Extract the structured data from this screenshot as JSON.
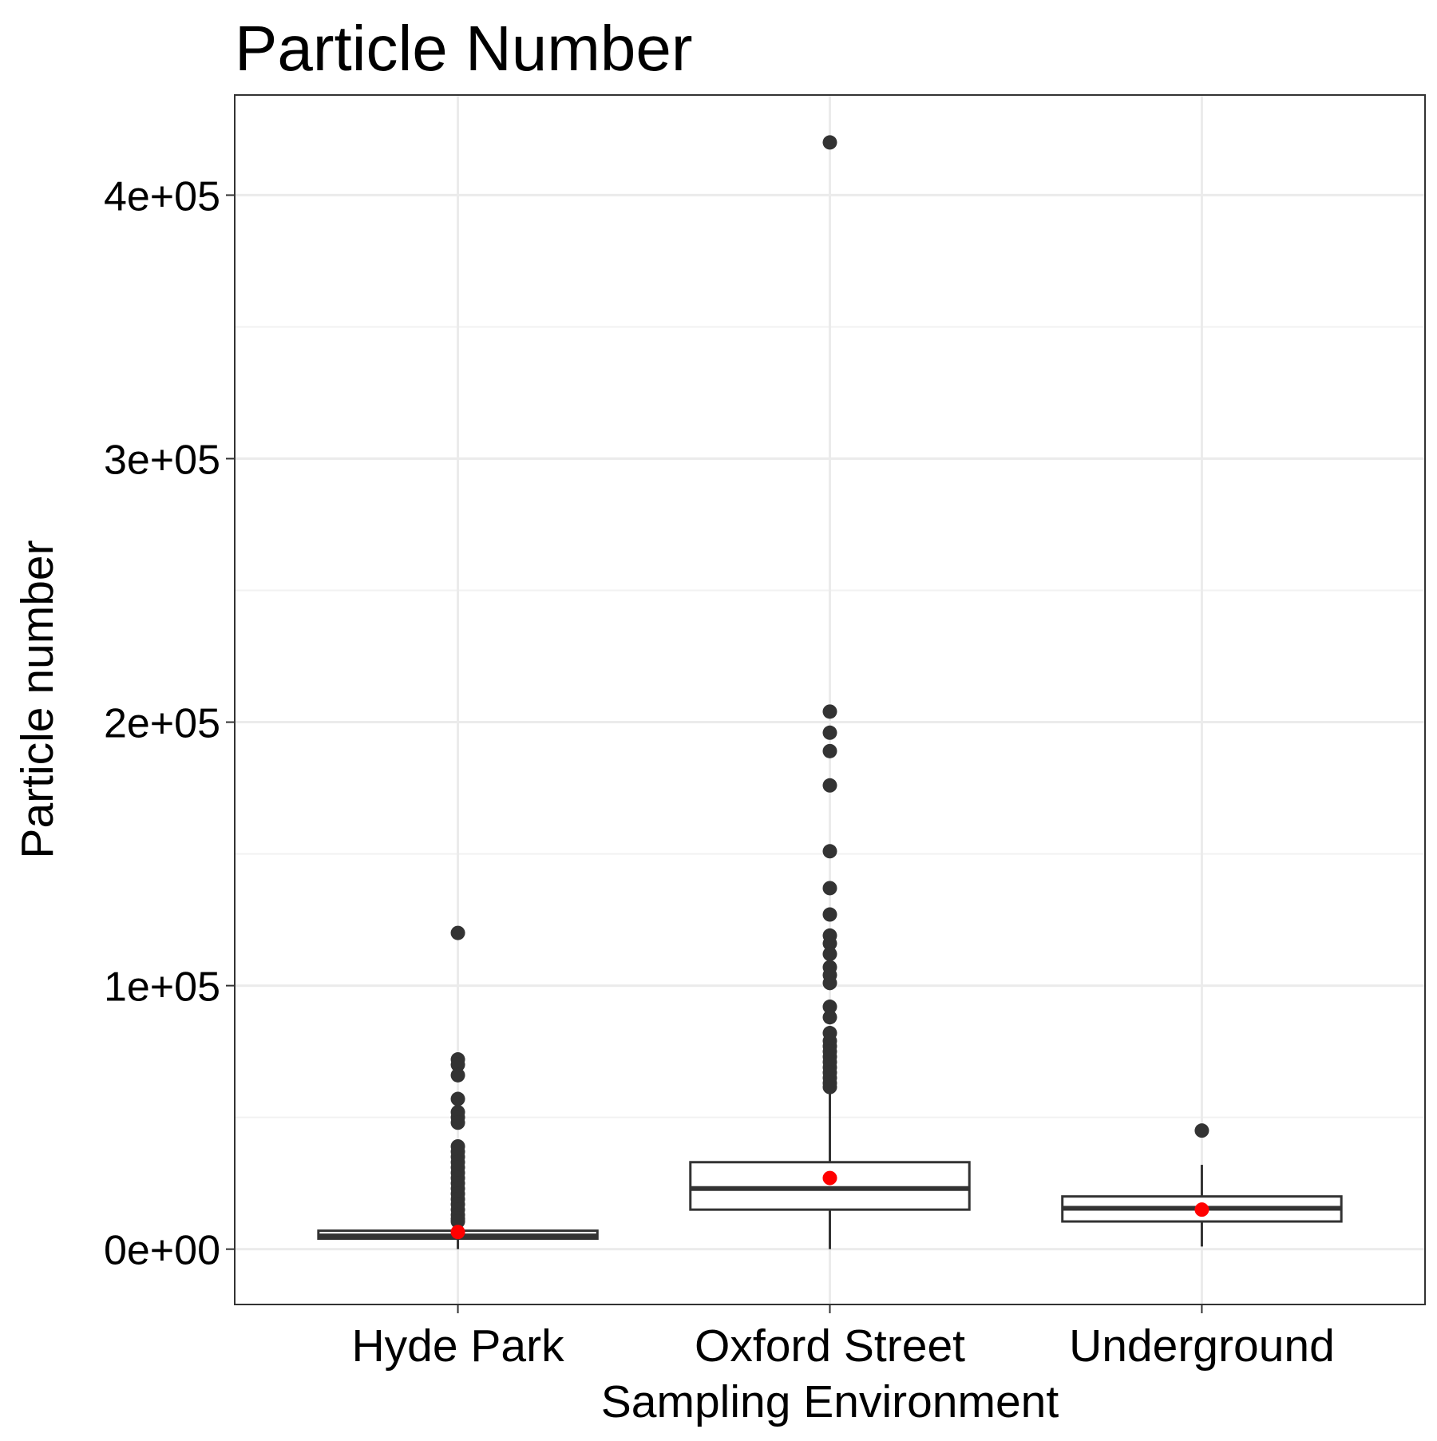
{
  "chart_data": {
    "type": "box",
    "title": "Particle Number",
    "xlabel": "Sampling Environment",
    "ylabel": "Particle number",
    "ylim": [
      -21000,
      438000
    ],
    "y_ticks": [
      0,
      100000,
      200000,
      300000,
      400000
    ],
    "y_tick_labels": [
      "0e+00",
      "1e+05",
      "2e+05",
      "3e+05",
      "4e+05"
    ],
    "grid": true,
    "categories": [
      "Hyde Park",
      "Oxford Street",
      "Underground"
    ],
    "boxes": [
      {
        "category": "Hyde Park",
        "whisker_low": 0,
        "q1": 4000,
        "median": 5000,
        "q3": 7000,
        "whisker_high": 7500,
        "mean": 6500,
        "outliers": [
          120000,
          72000,
          70000,
          66000,
          57000,
          52000,
          50000,
          48000,
          39000,
          37000,
          35000,
          33000,
          31000,
          29000,
          27000,
          25000,
          23000,
          21000,
          19000,
          17000,
          15000,
          13000,
          11500,
          10500
        ]
      },
      {
        "category": "Oxford Street",
        "whisker_low": 0,
        "q1": 15000,
        "median": 23000,
        "q3": 33000,
        "whisker_high": 60000,
        "mean": 27000,
        "outliers": [
          420000,
          204000,
          196000,
          189000,
          176000,
          151000,
          137000,
          127000,
          119000,
          116000,
          112000,
          107000,
          104000,
          101000,
          92000,
          88000,
          82000,
          79000,
          77000,
          75000,
          73000,
          71000,
          69000,
          67000,
          65000,
          63000,
          61500
        ]
      },
      {
        "category": "Underground",
        "whisker_low": 1000,
        "q1": 10500,
        "median": 15500,
        "q3": 20000,
        "whisker_high": 32000,
        "mean": 15000,
        "outliers": [
          45000
        ]
      }
    ],
    "colors": {
      "box_stroke": "#333333",
      "outlier": "#333333",
      "mean_point": "#ff0000",
      "grid_major": "#ebebeb",
      "grid_minor": "#f2f2f2",
      "panel_border": "#333333"
    }
  }
}
